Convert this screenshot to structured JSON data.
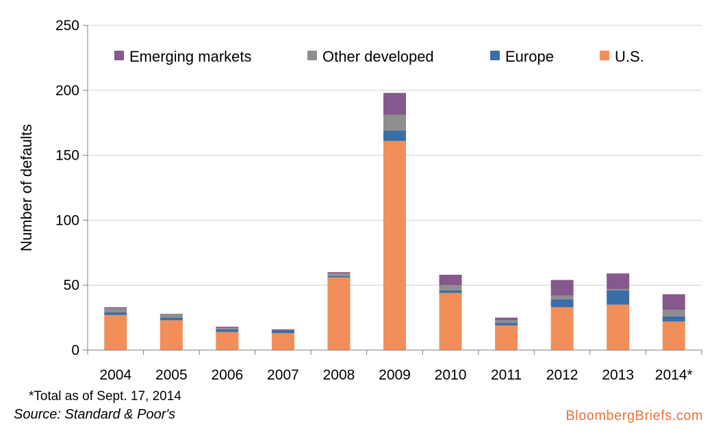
{
  "chart_data": {
    "type": "bar",
    "stacked": true,
    "categories": [
      "2004",
      "2005",
      "2006",
      "2007",
      "2008",
      "2009",
      "2010",
      "2011",
      "2012",
      "2013",
      "2014*"
    ],
    "series": [
      {
        "name": "U.S.",
        "color": "#f28e5a",
        "values": [
          27,
          23,
          14,
          13,
          56,
          161,
          44,
          19,
          33,
          35,
          22
        ]
      },
      {
        "name": "Europe",
        "color": "#3a6ea8",
        "values": [
          2,
          2,
          2,
          2,
          1,
          8,
          2,
          2,
          6,
          11,
          4
        ]
      },
      {
        "name": "Other developed",
        "color": "#8e8e8e",
        "values": [
          3,
          3,
          1,
          0,
          2,
          12,
          4,
          2,
          3,
          1,
          5
        ]
      },
      {
        "name": "Emerging markets",
        "color": "#85588e",
        "values": [
          1,
          0,
          1,
          1,
          1,
          17,
          8,
          2,
          12,
          12,
          12
        ]
      }
    ],
    "legend_order": [
      "Emerging markets",
      "Other developed",
      "Europe",
      "U.S."
    ],
    "legend_position": "top",
    "ylabel": "Number of defaults",
    "xlabel": "",
    "ylim": [
      0,
      250
    ],
    "yticks": [
      0,
      50,
      100,
      150,
      200,
      250
    ],
    "grid": true
  },
  "footnote": "*Total as of Sept. 17, 2014",
  "source": "Source: Standard & Poor's",
  "brand": "BloombergBriefs.com"
}
